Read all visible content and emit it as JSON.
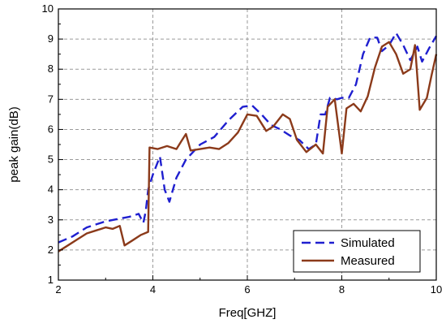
{
  "chart_data": {
    "type": "line",
    "title": "",
    "xlabel": "Freq[GHZ]",
    "ylabel": "peak gain(dB)",
    "xlim": [
      2,
      10
    ],
    "ylim": [
      1,
      10
    ],
    "x_ticks": [
      "2",
      "4",
      "6",
      "8",
      "10"
    ],
    "y_ticks": [
      "1",
      "2",
      "3",
      "4",
      "5",
      "6",
      "7",
      "8",
      "9",
      "10"
    ],
    "grid": true,
    "legend_position": "bottom-right",
    "series": [
      {
        "name": "Simulated",
        "color": "#1f1fcf",
        "style": "dashed",
        "points": [
          [
            2.0,
            2.25
          ],
          [
            2.3,
            2.45
          ],
          [
            2.6,
            2.75
          ],
          [
            3.0,
            2.95
          ],
          [
            3.5,
            3.1
          ],
          [
            3.7,
            3.2
          ],
          [
            3.8,
            2.9
          ],
          [
            3.85,
            3.3
          ],
          [
            3.9,
            4.0
          ],
          [
            4.0,
            4.5
          ],
          [
            4.15,
            5.1
          ],
          [
            4.25,
            4.0
          ],
          [
            4.35,
            3.6
          ],
          [
            4.5,
            4.4
          ],
          [
            4.7,
            5.0
          ],
          [
            5.0,
            5.5
          ],
          [
            5.3,
            5.75
          ],
          [
            5.6,
            6.3
          ],
          [
            5.9,
            6.75
          ],
          [
            6.1,
            6.8
          ],
          [
            6.3,
            6.5
          ],
          [
            6.5,
            6.15
          ],
          [
            6.7,
            6.0
          ],
          [
            6.9,
            5.8
          ],
          [
            7.1,
            5.65
          ],
          [
            7.3,
            5.35
          ],
          [
            7.45,
            5.5
          ],
          [
            7.55,
            6.5
          ],
          [
            7.65,
            6.5
          ],
          [
            7.75,
            7.05
          ],
          [
            7.9,
            7.0
          ],
          [
            8.0,
            7.05
          ],
          [
            8.15,
            7.05
          ],
          [
            8.3,
            7.5
          ],
          [
            8.45,
            8.5
          ],
          [
            8.6,
            9.05
          ],
          [
            8.75,
            9.05
          ],
          [
            8.85,
            8.6
          ],
          [
            9.0,
            8.8
          ],
          [
            9.15,
            9.2
          ],
          [
            9.3,
            8.8
          ],
          [
            9.45,
            8.3
          ],
          [
            9.6,
            8.75
          ],
          [
            9.7,
            8.25
          ],
          [
            9.85,
            8.7
          ],
          [
            10.0,
            9.1
          ]
        ]
      },
      {
        "name": "Measured",
        "color": "#8b3a1a",
        "style": "solid",
        "points": [
          [
            2.0,
            1.95
          ],
          [
            2.2,
            2.15
          ],
          [
            2.4,
            2.35
          ],
          [
            2.6,
            2.55
          ],
          [
            2.8,
            2.65
          ],
          [
            3.0,
            2.75
          ],
          [
            3.15,
            2.7
          ],
          [
            3.3,
            2.8
          ],
          [
            3.4,
            2.15
          ],
          [
            3.55,
            2.3
          ],
          [
            3.75,
            2.5
          ],
          [
            3.9,
            2.6
          ],
          [
            3.93,
            5.4
          ],
          [
            4.1,
            5.35
          ],
          [
            4.3,
            5.45
          ],
          [
            4.5,
            5.35
          ],
          [
            4.6,
            5.6
          ],
          [
            4.7,
            5.85
          ],
          [
            4.8,
            5.3
          ],
          [
            5.0,
            5.35
          ],
          [
            5.2,
            5.4
          ],
          [
            5.4,
            5.35
          ],
          [
            5.6,
            5.55
          ],
          [
            5.8,
            5.9
          ],
          [
            6.0,
            6.5
          ],
          [
            6.2,
            6.45
          ],
          [
            6.4,
            5.95
          ],
          [
            6.55,
            6.1
          ],
          [
            6.75,
            6.5
          ],
          [
            6.9,
            6.35
          ],
          [
            7.05,
            5.65
          ],
          [
            7.25,
            5.25
          ],
          [
            7.45,
            5.5
          ],
          [
            7.6,
            5.2
          ],
          [
            7.7,
            6.75
          ],
          [
            7.85,
            7.0
          ],
          [
            8.0,
            5.2
          ],
          [
            8.1,
            6.7
          ],
          [
            8.25,
            6.85
          ],
          [
            8.4,
            6.6
          ],
          [
            8.55,
            7.1
          ],
          [
            8.7,
            8.05
          ],
          [
            8.85,
            8.75
          ],
          [
            9.0,
            8.9
          ],
          [
            9.15,
            8.5
          ],
          [
            9.3,
            7.85
          ],
          [
            9.45,
            8.0
          ],
          [
            9.55,
            8.8
          ],
          [
            9.65,
            6.65
          ],
          [
            9.8,
            7.05
          ],
          [
            9.9,
            7.8
          ],
          [
            10.0,
            8.5
          ]
        ]
      }
    ]
  }
}
